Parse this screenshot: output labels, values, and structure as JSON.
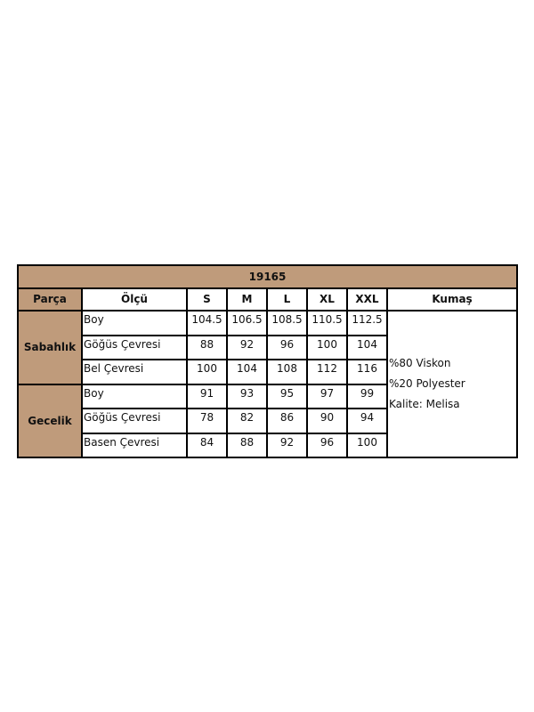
{
  "title": "19165",
  "headers": [
    "Parça",
    "Ölçü",
    "S",
    "M",
    "L",
    "XL",
    "XXL",
    "Kumaş"
  ],
  "groups": [
    {
      "name": "Sabahlık",
      "rows": [
        {
          "measure": "Boy",
          "values": [
            "104.5",
            "106.5",
            "108.5",
            "110.5",
            "112.5"
          ]
        },
        {
          "measure": "Göğüs Çevresi",
          "values": [
            "88",
            "92",
            "96",
            "100",
            "104"
          ]
        },
        {
          "measure": "Bel Çevresi",
          "values": [
            "100",
            "104",
            "108",
            "112",
            "116"
          ]
        }
      ]
    },
    {
      "name": "Gecelik",
      "rows": [
        {
          "measure": "Boy",
          "values": [
            "91",
            "93",
            "95",
            "97",
            "99"
          ]
        },
        {
          "measure": "Göğüs Çevresi",
          "values": [
            "78",
            "82",
            "86",
            "90",
            "94"
          ]
        },
        {
          "measure": "Basen Çevresi",
          "values": [
            "84",
            "88",
            "92",
            "96",
            "100"
          ]
        }
      ]
    }
  ],
  "fabric": [
    "%80 Viskon",
    "%20 Polyester",
    "Kalite: Melisa"
  ],
  "colors": {
    "header_bg": "#bf9b7b",
    "border": "#000000"
  }
}
